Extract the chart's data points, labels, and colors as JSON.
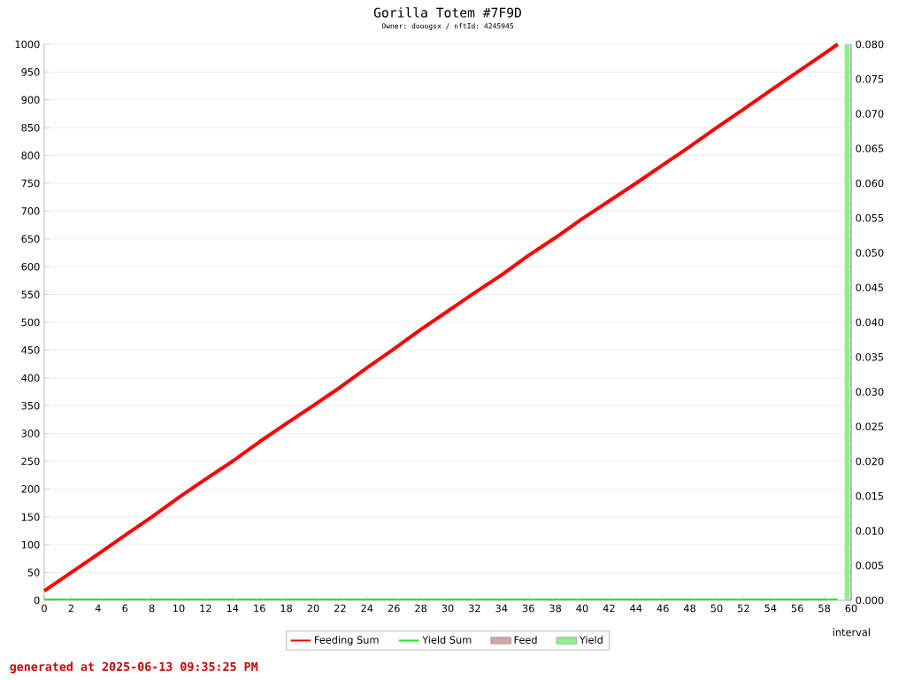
{
  "chart_data": {
    "type": "line",
    "title": "Gorilla Totem #7F9D",
    "subtitle": "Owner: dooogsx / nftId: 4245945",
    "xlabel": "interval",
    "annotations": [
      "generated at 2025-06-13 09:35:25 PM"
    ],
    "xlim": [
      0,
      60
    ],
    "xticks": [
      0,
      2,
      4,
      6,
      8,
      10,
      12,
      14,
      16,
      18,
      20,
      22,
      24,
      26,
      28,
      30,
      32,
      34,
      36,
      38,
      40,
      42,
      44,
      46,
      48,
      50,
      52,
      54,
      56,
      58,
      60
    ],
    "ylim": [
      0,
      1000
    ],
    "yticks": [
      0,
      50,
      100,
      150,
      200,
      250,
      300,
      350,
      400,
      450,
      500,
      550,
      600,
      650,
      700,
      750,
      800,
      850,
      900,
      950,
      1000
    ],
    "y2lim": [
      0,
      0.08
    ],
    "y2ticks": [
      {
        "value": 0,
        "label": "0.000"
      },
      {
        "value": 0.005,
        "label": "0.005"
      },
      {
        "value": 0.01,
        "label": "0.010"
      },
      {
        "value": 0.015,
        "label": "0.015"
      },
      {
        "value": 0.02,
        "label": "0.020"
      },
      {
        "value": 0.025,
        "label": "0.025"
      },
      {
        "value": 0.03,
        "label": "0.030"
      },
      {
        "value": 0.035,
        "label": "0.035"
      },
      {
        "value": 0.04,
        "label": "0.040"
      },
      {
        "value": 0.045,
        "label": "0.045"
      },
      {
        "value": 0.05,
        "label": "0.050"
      },
      {
        "value": 0.055,
        "label": "0.055"
      },
      {
        "value": 0.06,
        "label": "0.060"
      },
      {
        "value": 0.065,
        "label": "0.065"
      },
      {
        "value": 0.07,
        "label": "0.070"
      },
      {
        "value": 0.075,
        "label": "0.075"
      },
      {
        "value": 0.08,
        "label": "0.080"
      }
    ],
    "grid": "y",
    "legend": "bottom",
    "marker": "none",
    "series": [
      {
        "name": "Feeding Sum",
        "color": "#ff0000",
        "x": [
          0,
          2,
          4,
          6,
          8,
          10,
          12,
          14,
          16,
          18,
          20,
          22,
          24,
          26,
          28,
          30,
          32,
          34,
          36,
          38,
          40,
          42,
          44,
          46,
          48,
          50,
          52,
          54,
          56,
          58,
          59
        ],
        "values": [
          17,
          50,
          83,
          117,
          150,
          185,
          218,
          250,
          285,
          318,
          350,
          383,
          418,
          452,
          487,
          520,
          553,
          585,
          620,
          652,
          686,
          718,
          750,
          783,
          816,
          850,
          883,
          917,
          950,
          983,
          1000
        ]
      },
      {
        "name": "Yield Sum",
        "color": "#22ee22",
        "axis": "y2",
        "x": [
          0,
          59
        ],
        "values": [
          0,
          0
        ]
      },
      {
        "name": "Feed",
        "type": "bar",
        "color": "#d4a5a5",
        "axis": "y2"
      },
      {
        "name": "Yield",
        "type": "bar",
        "color": "#90ee90",
        "axis": "y2",
        "x": [
          59.7
        ],
        "values": [
          0.08
        ]
      }
    ]
  }
}
